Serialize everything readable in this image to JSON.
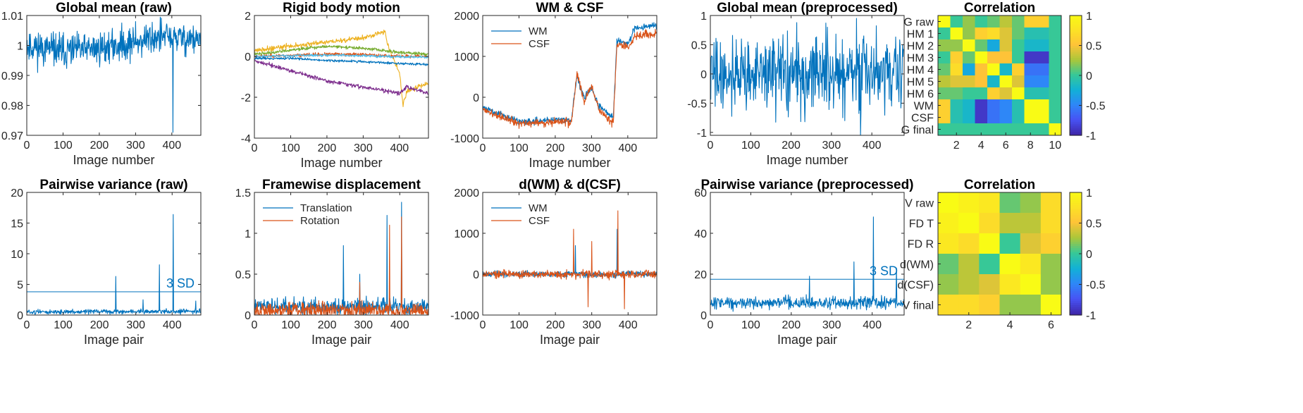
{
  "figure": {
    "panel_count": 10
  },
  "colors": {
    "blue": "#0072BD",
    "orange": "#D95319",
    "yellow": "#EDB120",
    "purple": "#7E2F8E",
    "green": "#77AC30",
    "cyan": "#4DBEEE",
    "axis": "#262626"
  },
  "chart_data": [
    {
      "type": "line",
      "title": "Global mean (raw)",
      "xlabel": "Image number",
      "xlim": [
        0,
        480
      ],
      "ylim": [
        0.97,
        1.01
      ],
      "xticks": [
        0,
        100,
        200,
        300,
        400
      ],
      "xtick_labels": [
        "0",
        "100",
        "200",
        "300",
        "400"
      ],
      "yticks": [
        0.97,
        0.98,
        0.99,
        1,
        1.01
      ],
      "ytick_labels": [
        "0.97",
        "0.98",
        "0.99",
        "1",
        "1.01"
      ],
      "series": [
        {
          "color": "#0072BD",
          "n": 480,
          "anchors": [
            [
              0,
              1.0
            ],
            [
              100,
              0.998
            ],
            [
              200,
              0.999
            ],
            [
              300,
              1.001
            ],
            [
              360,
              1.003
            ],
            [
              480,
              1.002
            ]
          ],
          "noise": 0.0028,
          "seed": 11,
          "spikes": [
            [
              403,
              0.971
            ],
            [
              300,
              1.008
            ]
          ]
        }
      ]
    },
    {
      "type": "line",
      "title": "Rigid body motion",
      "xlabel": "Image number",
      "xlim": [
        0,
        480
      ],
      "ylim": [
        -4,
        2
      ],
      "xticks": [
        0,
        100,
        200,
        300,
        400
      ],
      "xtick_labels": [
        "0",
        "100",
        "200",
        "300",
        "400"
      ],
      "yticks": [
        -4,
        -2,
        0,
        2
      ],
      "ytick_labels": [
        "-4",
        "-2",
        "0",
        "2"
      ],
      "series": [
        {
          "color": "#EDB120",
          "n": 480,
          "anchors": [
            [
              0,
              0.3
            ],
            [
              100,
              0.5
            ],
            [
              200,
              0.7
            ],
            [
              300,
              0.9
            ],
            [
              360,
              1.2
            ],
            [
              370,
              0.4
            ],
            [
              400,
              -0.8
            ],
            [
              410,
              -2.4
            ],
            [
              420,
              -1.7
            ],
            [
              480,
              -1.3
            ]
          ],
          "noise": 0.06,
          "seed": 21
        },
        {
          "color": "#77AC30",
          "n": 480,
          "anchors": [
            [
              0,
              0.1
            ],
            [
              100,
              0.3
            ],
            [
              200,
              0.5
            ],
            [
              300,
              0.4
            ],
            [
              400,
              0.2
            ],
            [
              480,
              0.1
            ]
          ],
          "noise": 0.04,
          "seed": 22
        },
        {
          "color": "#D95319",
          "n": 480,
          "anchors": [
            [
              0,
              0.0
            ],
            [
              200,
              0.1
            ],
            [
              300,
              0.1
            ],
            [
              400,
              0.0
            ],
            [
              480,
              0.0
            ]
          ],
          "noise": 0.04,
          "seed": 23
        },
        {
          "color": "#4DBEEE",
          "n": 480,
          "anchors": [
            [
              0,
              0.0
            ],
            [
              150,
              0.05
            ],
            [
              250,
              0.05
            ],
            [
              350,
              0.0
            ],
            [
              480,
              -0.05
            ]
          ],
          "noise": 0.03,
          "seed": 24
        },
        {
          "color": "#0072BD",
          "n": 480,
          "anchors": [
            [
              0,
              -0.1
            ],
            [
              100,
              -0.1
            ],
            [
              200,
              -0.2
            ],
            [
              300,
              -0.25
            ],
            [
              400,
              -0.35
            ],
            [
              480,
              -0.4
            ]
          ],
          "noise": 0.03,
          "seed": 25
        },
        {
          "color": "#7E2F8E",
          "n": 480,
          "anchors": [
            [
              0,
              -0.2
            ],
            [
              100,
              -0.7
            ],
            [
              200,
              -1.2
            ],
            [
              300,
              -1.5
            ],
            [
              400,
              -1.8
            ],
            [
              420,
              -1.5
            ],
            [
              480,
              -1.8
            ]
          ],
          "noise": 0.05,
          "seed": 26
        }
      ]
    },
    {
      "type": "line",
      "title": "WM & CSF",
      "xlabel": "Image number",
      "xlim": [
        0,
        480
      ],
      "ylim": [
        -1000,
        2000
      ],
      "xticks": [
        0,
        100,
        200,
        300,
        400
      ],
      "xtick_labels": [
        "0",
        "100",
        "200",
        "300",
        "400"
      ],
      "yticks": [
        -1000,
        0,
        1000,
        2000
      ],
      "ytick_labels": [
        "-1000",
        "0",
        "1000",
        "2000"
      ],
      "legend": {
        "placement": "top-left",
        "entries": [
          "WM",
          "CSF"
        ]
      },
      "series": [
        {
          "name": "WM",
          "color": "#0072BD",
          "n": 480,
          "anchors": [
            [
              0,
              -250
            ],
            [
              100,
              -600
            ],
            [
              200,
              -550
            ],
            [
              245,
              -550
            ],
            [
              250,
              -100
            ],
            [
              260,
              500
            ],
            [
              280,
              0
            ],
            [
              300,
              200
            ],
            [
              320,
              -200
            ],
            [
              360,
              -500
            ],
            [
              370,
              1400
            ],
            [
              400,
              1300
            ],
            [
              420,
              1700
            ],
            [
              480,
              1750
            ]
          ],
          "noise": 40,
          "seed": 31
        },
        {
          "name": "CSF",
          "color": "#D95319",
          "n": 480,
          "anchors": [
            [
              0,
              -300
            ],
            [
              100,
              -650
            ],
            [
              200,
              -600
            ],
            [
              245,
              -600
            ],
            [
              250,
              -200
            ],
            [
              260,
              600
            ],
            [
              280,
              -100
            ],
            [
              300,
              250
            ],
            [
              320,
              -300
            ],
            [
              360,
              -650
            ],
            [
              370,
              1300
            ],
            [
              400,
              1200
            ],
            [
              420,
              1500
            ],
            [
              480,
              1550
            ]
          ],
          "noise": 50,
          "seed": 32
        }
      ]
    },
    {
      "type": "line",
      "title": "Global mean (preprocessed)",
      "xlabel": "Image number",
      "xlim": [
        0,
        480
      ],
      "ylim": [
        -1.05,
        1
      ],
      "xticks": [
        0,
        100,
        200,
        300,
        400
      ],
      "xtick_labels": [
        "0",
        "100",
        "200",
        "300",
        "400"
      ],
      "yticks": [
        -1,
        -0.5,
        0,
        0.5,
        1
      ],
      "ytick_labels": [
        "-1",
        "-0.5",
        "0",
        "0.5",
        "1"
      ],
      "series": [
        {
          "color": "#0072BD",
          "n": 480,
          "anchors": [
            [
              0,
              0
            ],
            [
              480,
              0
            ]
          ],
          "noise": 0.32,
          "seed": 41,
          "spikes": [
            [
              372,
              -1.05
            ],
            [
              362,
              0.95
            ],
            [
              290,
              0.8
            ]
          ]
        }
      ]
    },
    {
      "type": "heatmap",
      "title": "Correlation",
      "row_labels": [
        "G raw",
        "HM 1",
        "HM 2",
        "HM 3",
        "HM 4",
        "HM 5",
        "HM 6",
        "WM",
        "CSF",
        "G final"
      ],
      "xticks": [
        2,
        4,
        6,
        8,
        10
      ],
      "xtick_labels": [
        "2",
        "4",
        "6",
        "8",
        "10"
      ],
      "clim": [
        -1,
        1
      ],
      "cbar_ticks": [
        -1,
        -0.5,
        0,
        0.5,
        1
      ],
      "cbar_tick_labels": [
        "-1",
        "-0.5",
        "0",
        "0.5",
        "1"
      ],
      "matrix": [
        [
          1.0,
          0.0,
          0.2,
          0.0,
          0.1,
          0.3,
          0.1,
          0.6,
          0.6,
          0.0
        ],
        [
          0.0,
          1.0,
          0.2,
          0.6,
          0.7,
          0.4,
          0.1,
          -0.1,
          -0.1,
          0.0
        ],
        [
          0.2,
          0.2,
          1.0,
          0.1,
          -0.3,
          0.4,
          0.0,
          -0.2,
          -0.2,
          0.0
        ],
        [
          0.0,
          0.6,
          0.1,
          1.0,
          0.5,
          0.5,
          0.0,
          -0.9,
          -0.9,
          0.0
        ],
        [
          0.1,
          0.7,
          -0.3,
          0.5,
          1.0,
          -0.2,
          0.6,
          -0.6,
          -0.6,
          0.0
        ],
        [
          0.3,
          0.4,
          0.4,
          0.5,
          -0.2,
          1.0,
          0.4,
          -0.5,
          -0.5,
          0.0
        ],
        [
          0.1,
          0.1,
          0.0,
          0.0,
          0.6,
          0.4,
          1.0,
          -0.1,
          -0.1,
          0.0
        ],
        [
          0.6,
          -0.1,
          -0.2,
          -0.9,
          -0.6,
          -0.5,
          -0.1,
          1.0,
          1.0,
          0.0
        ],
        [
          0.6,
          -0.1,
          -0.2,
          -0.9,
          -0.6,
          -0.5,
          -0.1,
          1.0,
          1.0,
          0.0
        ],
        [
          0.0,
          0.0,
          0.0,
          0.0,
          0.0,
          0.0,
          0.0,
          0.0,
          0.0,
          1.0
        ]
      ]
    },
    {
      "type": "line",
      "title": "Pairwise variance (raw)",
      "xlabel": "Image pair",
      "xlim": [
        0,
        479
      ],
      "ylim": [
        0,
        20
      ],
      "xticks": [
        0,
        100,
        200,
        300,
        400
      ],
      "xtick_labels": [
        "0",
        "100",
        "200",
        "300",
        "400"
      ],
      "yticks": [
        0,
        5,
        10,
        15,
        20
      ],
      "ytick_labels": [
        "0",
        "5",
        "10",
        "15",
        "20"
      ],
      "series": [
        {
          "color": "#0072BD",
          "n": 479,
          "anchors": [
            [
              0,
              0.5
            ],
            [
              479,
              0.6
            ]
          ],
          "noise": 0.18,
          "seed": 51,
          "min": 0.05,
          "spikes": [
            [
              245,
              6.3
            ],
            [
              365,
              8.2
            ],
            [
              403,
              16.4
            ],
            [
              320,
              2.5
            ],
            [
              465,
              2.3
            ]
          ]
        }
      ],
      "hline": {
        "value": 3.8,
        "label": "3 SD"
      }
    },
    {
      "type": "line",
      "title": "Framewise displacement",
      "xlabel": "Image pair",
      "xlim": [
        0,
        479
      ],
      "ylim": [
        0,
        1.5
      ],
      "xticks": [
        0,
        100,
        200,
        300,
        400
      ],
      "xtick_labels": [
        "0",
        "100",
        "200",
        "300",
        "400"
      ],
      "yticks": [
        0,
        0.5,
        1,
        1.5
      ],
      "ytick_labels": [
        "0",
        "0.5",
        "1",
        "1.5"
      ],
      "legend": {
        "placement": "top-left",
        "entries": [
          "Translation",
          "Rotation"
        ]
      },
      "series": [
        {
          "name": "Translation",
          "color": "#0072BD",
          "n": 479,
          "anchors": [
            [
              0,
              0.1
            ],
            [
              479,
              0.1
            ]
          ],
          "noise": 0.05,
          "seed": 61,
          "min": 0.0,
          "spikes": [
            [
              245,
              0.85
            ],
            [
              365,
              1.22
            ],
            [
              405,
              1.38
            ],
            [
              290,
              0.5
            ]
          ]
        },
        {
          "name": "Rotation",
          "color": "#D95319",
          "n": 479,
          "anchors": [
            [
              0,
              0.06
            ],
            [
              479,
              0.06
            ]
          ],
          "noise": 0.05,
          "seed": 62,
          "min": 0.0,
          "spikes": [
            [
              372,
              1.1
            ],
            [
              405,
              1.2
            ],
            [
              290,
              0.4
            ]
          ]
        }
      ]
    },
    {
      "type": "line",
      "title": "d(WM) & d(CSF)",
      "xlabel": "Image pair",
      "xlim": [
        0,
        479
      ],
      "ylim": [
        -1000,
        2000
      ],
      "xticks": [
        0,
        100,
        200,
        300,
        400
      ],
      "xtick_labels": [
        "0",
        "100",
        "200",
        "300",
        "400"
      ],
      "yticks": [
        -1000,
        0,
        1000,
        2000
      ],
      "ytick_labels": [
        "-1000",
        "0",
        "1000",
        "2000"
      ],
      "legend": {
        "placement": "top-left",
        "entries": [
          "WM",
          "CSF"
        ]
      },
      "series": [
        {
          "name": "WM",
          "color": "#0072BD",
          "n": 479,
          "anchors": [
            [
              0,
              0
            ],
            [
              479,
              0
            ]
          ],
          "noise": 35,
          "seed": 71,
          "spikes": [
            [
              255,
              700
            ],
            [
              370,
              1100
            ]
          ]
        },
        {
          "name": "CSF",
          "color": "#D95319",
          "n": 479,
          "anchors": [
            [
              0,
              0
            ],
            [
              479,
              0
            ]
          ],
          "noise": 50,
          "seed": 72,
          "spikes": [
            [
              372,
              1550
            ],
            [
              250,
              1100
            ],
            [
              290,
              -800
            ],
            [
              300,
              800
            ],
            [
              390,
              -850
            ]
          ]
        }
      ]
    },
    {
      "type": "line",
      "title": "Pairwise variance (preprocessed)",
      "xlabel": "Image pair",
      "xlim": [
        0,
        479
      ],
      "ylim": [
        0,
        60
      ],
      "xticks": [
        0,
        100,
        200,
        300,
        400
      ],
      "xtick_labels": [
        "0",
        "100",
        "200",
        "300",
        "400"
      ],
      "yticks": [
        0,
        20,
        40,
        60
      ],
      "ytick_labels": [
        "0",
        "20",
        "40",
        "60"
      ],
      "series": [
        {
          "color": "#0072BD",
          "n": 479,
          "anchors": [
            [
              0,
              6
            ],
            [
              479,
              6
            ]
          ],
          "noise": 1.6,
          "seed": 81,
          "min": 1.0,
          "spikes": [
            [
              245,
              19
            ],
            [
              355,
              26
            ],
            [
              403,
              48
            ],
            [
              460,
              23
            ]
          ]
        }
      ],
      "hline": {
        "value": 17.5,
        "label": "3 SD"
      }
    },
    {
      "type": "heatmap",
      "title": "Correlation",
      "row_labels": [
        "V raw",
        "FD T",
        "FD R",
        "d(WM)",
        "d(CSF)",
        "V final"
      ],
      "xticks": [
        2,
        4,
        6
      ],
      "xtick_labels": [
        "2",
        "4",
        "6"
      ],
      "clim": [
        -1,
        1
      ],
      "cbar_ticks": [
        -1,
        -0.5,
        0,
        0.5,
        1
      ],
      "cbar_tick_labels": [
        "-1",
        "-0.5",
        "0",
        "0.5",
        "1"
      ],
      "matrix": [
        [
          1.0,
          0.9,
          0.8,
          0.1,
          0.2,
          0.7
        ],
        [
          0.9,
          1.0,
          0.7,
          0.3,
          0.3,
          0.7
        ],
        [
          0.8,
          0.7,
          1.0,
          0.0,
          0.4,
          0.6
        ],
        [
          0.1,
          0.3,
          0.0,
          1.0,
          0.8,
          0.2
        ],
        [
          0.2,
          0.3,
          0.4,
          0.8,
          1.0,
          0.2
        ],
        [
          0.7,
          0.7,
          0.6,
          0.2,
          0.2,
          1.0
        ]
      ]
    }
  ]
}
